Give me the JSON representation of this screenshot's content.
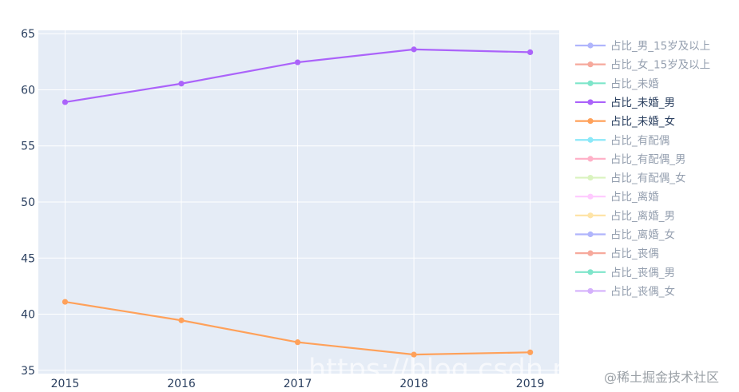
{
  "chart_data": {
    "type": "line",
    "x": [
      2015,
      2016,
      2017,
      2018,
      2019
    ],
    "ylim": [
      34.7,
      65.3
    ],
    "xlim": [
      2014.77,
      2019.25
    ],
    "yticks": [
      35,
      40,
      45,
      50,
      55,
      60,
      65
    ],
    "grid": true,
    "legend_position": "right",
    "series": [
      {
        "name": "占比_男_15岁及以上",
        "color": "#636efa",
        "visible": false
      },
      {
        "name": "占比_女_15岁及以上",
        "color": "#ef553b",
        "visible": false
      },
      {
        "name": "占比_未婚",
        "color": "#00cc96",
        "visible": false
      },
      {
        "name": "占比_未婚_男",
        "color": "#ab63fa",
        "visible": true,
        "values": [
          58.9,
          60.55,
          62.45,
          63.6,
          63.35
        ]
      },
      {
        "name": "占比_未婚_女",
        "color": "#ffa15a",
        "visible": true,
        "values": [
          41.1,
          39.45,
          37.5,
          36.4,
          36.6
        ]
      },
      {
        "name": "占比_有配偶",
        "color": "#19d3f3",
        "visible": false
      },
      {
        "name": "占比_有配偶_男",
        "color": "#ff6692",
        "visible": false
      },
      {
        "name": "占比_有配偶_女",
        "color": "#b6e880",
        "visible": false
      },
      {
        "name": "占比_离婚",
        "color": "#ff97ff",
        "visible": false
      },
      {
        "name": "占比_离婚_男",
        "color": "#fecb52",
        "visible": false
      },
      {
        "name": "占比_离婚_女",
        "color": "#636efa",
        "visible": false
      },
      {
        "name": "占比_丧偶",
        "color": "#ef553b",
        "visible": false
      },
      {
        "name": "占比_丧偶_男",
        "color": "#00cc96",
        "visible": false
      },
      {
        "name": "占比_丧偶_女",
        "color": "#ab63fa",
        "visible": false
      }
    ]
  },
  "watermarks": {
    "url": "https://blog.csdn.n",
    "community": "@稀土掘金技术社区"
  }
}
